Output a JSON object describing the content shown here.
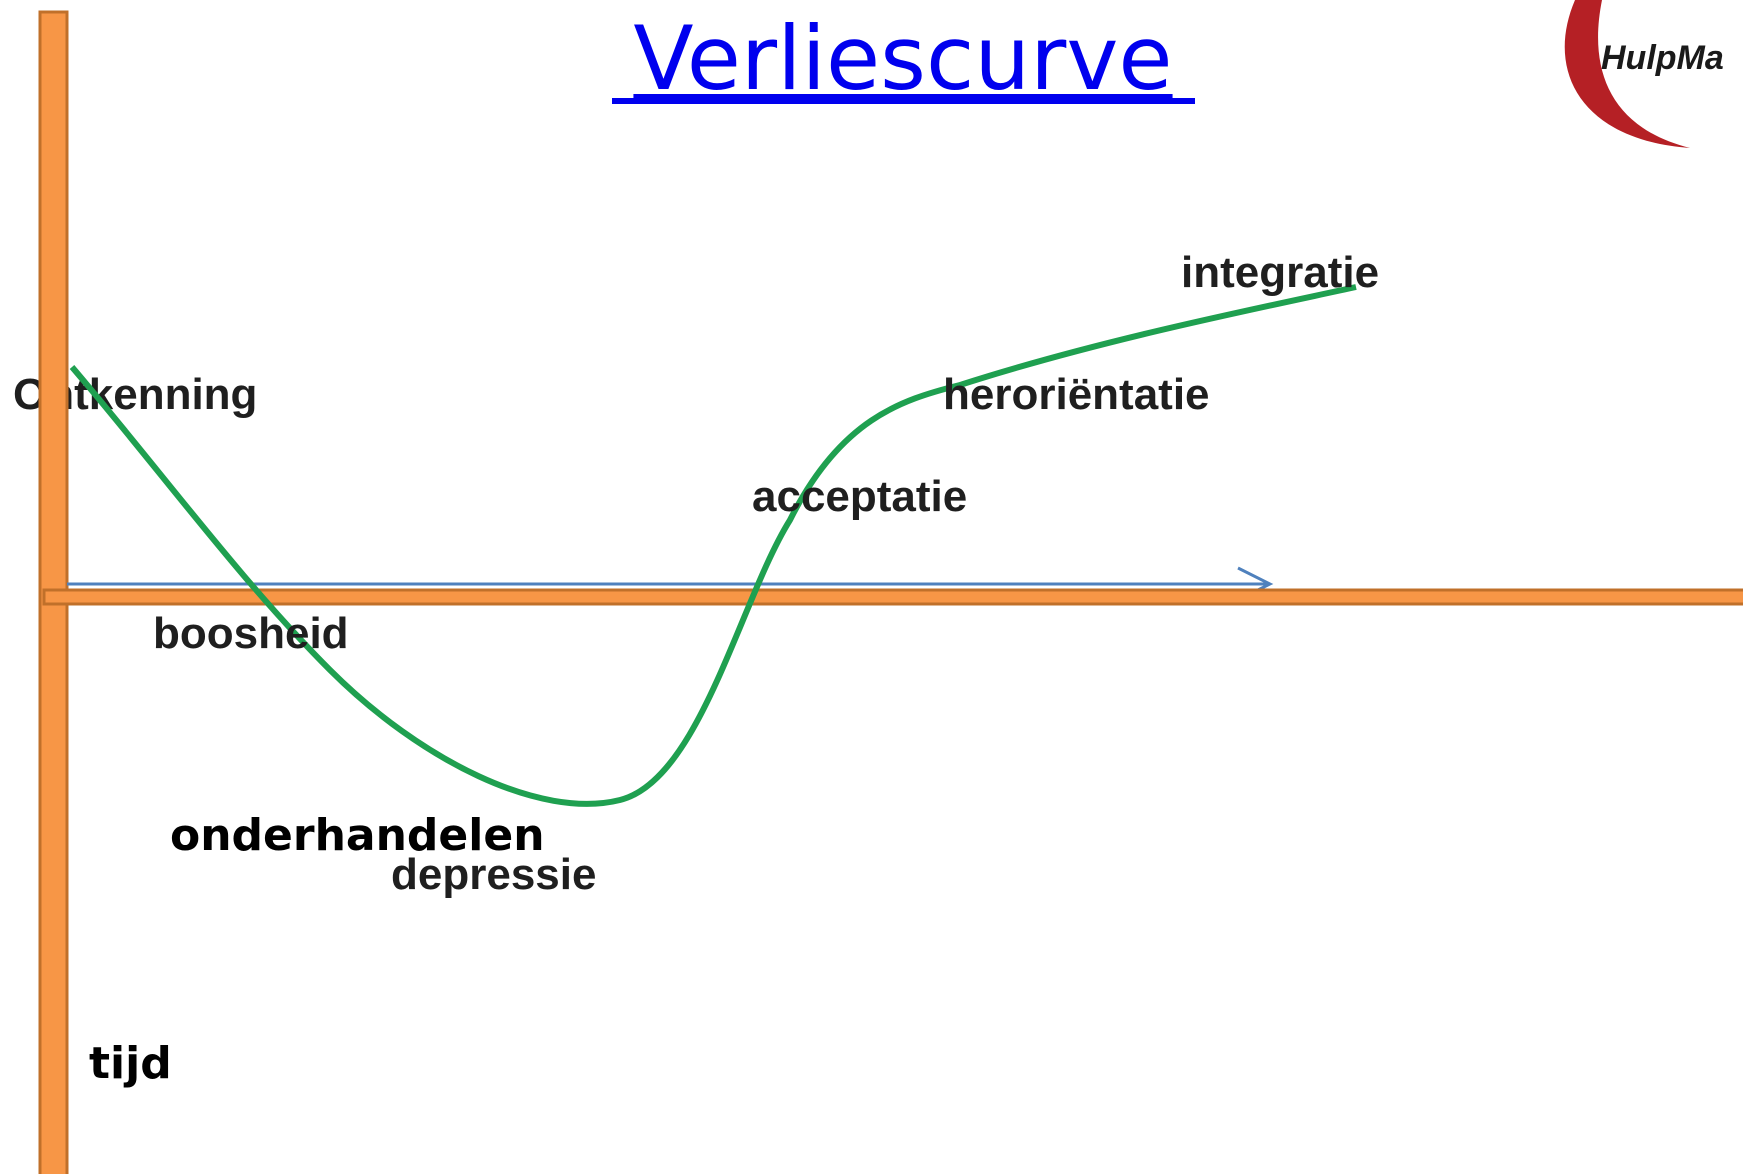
{
  "title": "Verliescurve",
  "logo": {
    "text": "HulpMa"
  },
  "stages": [
    "Ontkenning",
    "boosheid",
    "onderhandelen",
    "depressie",
    "acceptatie",
    "heroriëntatie",
    "integratie"
  ],
  "axis_label": "tijd"
}
